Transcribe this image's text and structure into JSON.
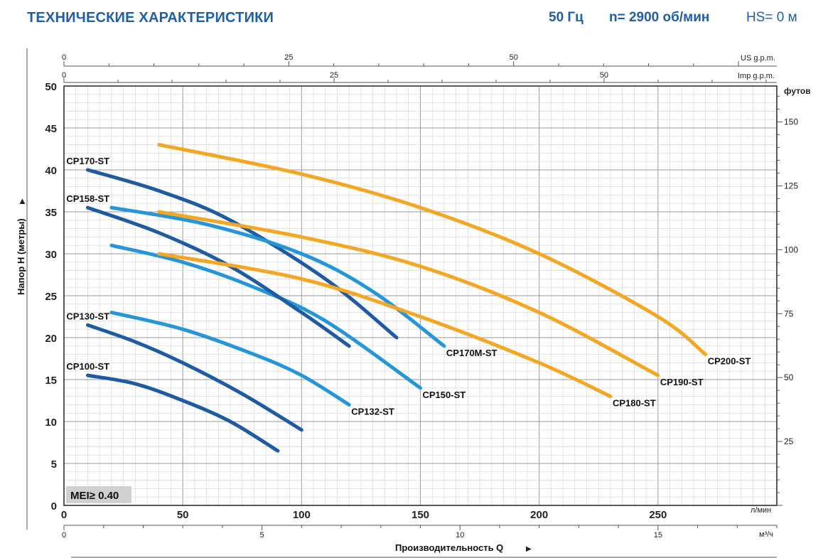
{
  "header": {
    "title": "ТЕХНИЧЕСКИЕ ХАРАКТЕРИСТИКИ",
    "frequency": "50 Гц",
    "speed": "n= 2900 об/мин",
    "hs": "HS= 0 м"
  },
  "badge": "MEI≥ 0.40",
  "colors": {
    "dark_blue": "#1e5ba3",
    "light_blue": "#2596d9",
    "orange": "#f5a623",
    "grid": "#c8c8c8"
  },
  "chart_data": {
    "type": "line",
    "xlabel": "Производительность Q",
    "ylabel": "Напор H (метры)",
    "xlim": [
      0,
      300
    ],
    "ylim": [
      0,
      50
    ],
    "x_ticks": [
      0,
      50,
      100,
      150,
      200,
      250
    ],
    "y_ticks": [
      0,
      5,
      10,
      15,
      20,
      25,
      30,
      35,
      40,
      45,
      50
    ],
    "x_unit": "л/мин",
    "secondary_axes": {
      "m3h": {
        "unit": "м³/ч",
        "ticks": [
          0,
          5,
          10,
          15
        ]
      },
      "us_gpm": {
        "unit": "US g.p.m.",
        "ticks": [
          0,
          25,
          50
        ]
      },
      "imp_gpm": {
        "unit": "Imp g.p.m.",
        "ticks": [
          0,
          25,
          50
        ]
      },
      "feet": {
        "unit": "футов",
        "ticks": [
          25,
          50,
          75,
          100,
          125,
          150
        ]
      }
    },
    "grid": true,
    "series": [
      {
        "name": "CP100-ST",
        "color": "dark_blue",
        "label_pos": "start",
        "points": [
          [
            10,
            15.5
          ],
          [
            30,
            14.5
          ],
          [
            50,
            12.5
          ],
          [
            70,
            10.0
          ],
          [
            90,
            6.5
          ]
        ]
      },
      {
        "name": "CP130-ST",
        "color": "dark_blue",
        "label_pos": "start",
        "points": [
          [
            10,
            21.5
          ],
          [
            30,
            19.5
          ],
          [
            50,
            17.0
          ],
          [
            75,
            13.3
          ],
          [
            100,
            9.0
          ]
        ]
      },
      {
        "name": "CP132-ST",
        "color": "light_blue",
        "label_pos": "end",
        "points": [
          [
            20,
            23.0
          ],
          [
            50,
            21.0
          ],
          [
            80,
            18.0
          ],
          [
            100,
            15.5
          ],
          [
            120,
            12.0
          ]
        ]
      },
      {
        "name": "CP150-ST",
        "color": "light_blue",
        "label_pos": "end",
        "points": [
          [
            20,
            31.0
          ],
          [
            50,
            29.0
          ],
          [
            80,
            26.0
          ],
          [
            110,
            22.0
          ],
          [
            150,
            14.0
          ]
        ]
      },
      {
        "name": "CP158-ST",
        "color": "dark_blue",
        "label_pos": "start",
        "points": [
          [
            10,
            35.5
          ],
          [
            40,
            32.5
          ],
          [
            70,
            28.5
          ],
          [
            100,
            23.0
          ],
          [
            120,
            19.0
          ]
        ]
      },
      {
        "name": "CP170-ST",
        "color": "dark_blue",
        "label_pos": "start",
        "points": [
          [
            10,
            40.0
          ],
          [
            40,
            37.5
          ],
          [
            70,
            34.0
          ],
          [
            110,
            27.0
          ],
          [
            140,
            20.0
          ]
        ]
      },
      {
        "name": "CP170M-ST",
        "color": "light_blue",
        "label_pos": "end",
        "points": [
          [
            20,
            35.5
          ],
          [
            60,
            33.5
          ],
          [
            100,
            30.0
          ],
          [
            130,
            25.5
          ],
          [
            160,
            19.0
          ]
        ]
      },
      {
        "name": "CP180-ST",
        "color": "orange",
        "label_pos": "end",
        "points": [
          [
            40,
            30.0
          ],
          [
            100,
            27.0
          ],
          [
            150,
            22.5
          ],
          [
            200,
            17.0
          ],
          [
            230,
            13.0
          ]
        ]
      },
      {
        "name": "CP190-ST",
        "color": "orange",
        "label_pos": "end",
        "points": [
          [
            40,
            35.0
          ],
          [
            100,
            32.0
          ],
          [
            150,
            28.5
          ],
          [
            200,
            23.0
          ],
          [
            250,
            15.5
          ]
        ]
      },
      {
        "name": "CP200-ST",
        "color": "orange",
        "label_pos": "end",
        "points": [
          [
            40,
            43.0
          ],
          [
            100,
            39.5
          ],
          [
            150,
            35.5
          ],
          [
            200,
            30.0
          ],
          [
            250,
            22.5
          ],
          [
            270,
            18.0
          ]
        ]
      }
    ]
  }
}
